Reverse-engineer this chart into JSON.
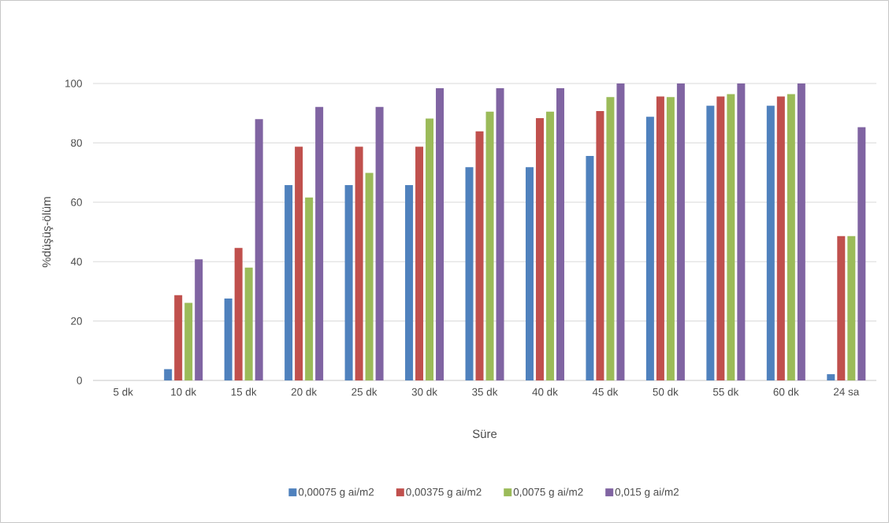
{
  "chart_data": {
    "type": "bar",
    "xlabel": "Süre",
    "ylabel": "%düşüş-ölüm",
    "categories": [
      "5 dk",
      "10 dk",
      "15 dk",
      "20 dk",
      "25 dk",
      "30 dk",
      "35 dk",
      "40 dk",
      "45 dk",
      "50 dk",
      "55 dk",
      "60 dk",
      "24 sa"
    ],
    "series": [
      {
        "name": "0,00075  g ai/m2",
        "color": "#4f81bd",
        "values": [
          0,
          3.8,
          27.6,
          65.8,
          65.8,
          65.8,
          71.8,
          71.8,
          75.6,
          88.8,
          92.5,
          92.5,
          2.1
        ]
      },
      {
        "name": "0,00375 g ai/m2",
        "color": "#c0504d",
        "values": [
          0,
          28.7,
          44.6,
          78.7,
          78.7,
          78.7,
          83.9,
          88.3,
          90.7,
          95.6,
          95.6,
          95.6,
          48.6
        ]
      },
      {
        "name": "0,0075 g ai/m2",
        "color": "#9bbb59",
        "values": [
          0,
          26.1,
          38,
          61.6,
          69.9,
          88.2,
          90.5,
          90.5,
          95.4,
          95.4,
          96.4,
          96.4,
          48.6
        ]
      },
      {
        "name": "0,015 g ai/m2",
        "color": "#8064a2",
        "values": [
          0,
          40.8,
          88,
          92.1,
          92.1,
          98.4,
          98.4,
          98.4,
          100,
          100,
          100,
          100,
          85.3
        ]
      }
    ],
    "ylim": [
      0,
      100
    ],
    "yticks": [
      0,
      20,
      40,
      60,
      80,
      100
    ],
    "grid": "y",
    "legend": "bottom"
  }
}
